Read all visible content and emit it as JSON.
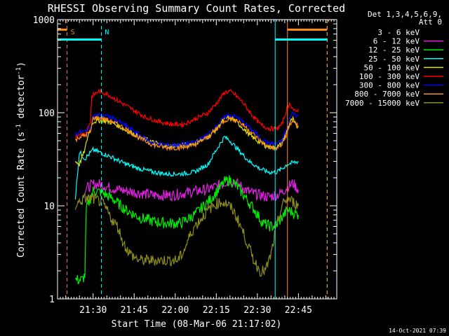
{
  "chart_data": {
    "type": "line",
    "title": "RHESSI Observing Summary Count Rates, Corrected",
    "xlabel": "Start Time (08-Mar-06 21:17:02)",
    "ylabel_main": "Corrected Count Rate (s",
    "ylabel_sup1": "-1",
    "ylabel_mid": " detector",
    "ylabel_sup2": "-1",
    "ylabel_end": ")",
    "y_scale": "log",
    "ylim": [
      1,
      1000
    ],
    "xlim_minutes": [
      0,
      102
    ],
    "x_ticks": [
      {
        "label": "21:30",
        "value": 13
      },
      {
        "label": "21:45",
        "value": 28
      },
      {
        "label": "22:00",
        "value": 43
      },
      {
        "label": "22:15",
        "value": 58
      },
      {
        "label": "22:30",
        "value": 73
      },
      {
        "label": "22:45",
        "value": 88
      }
    ],
    "y_ticks": [
      {
        "label": "1",
        "value": 1
      },
      {
        "label": "10",
        "value": 10
      },
      {
        "label": "100",
        "value": 100
      },
      {
        "label": "1000",
        "value": 1000
      }
    ],
    "grid": false,
    "legend_position": "top-right",
    "legend_header": [
      "Det 1,3,4,5,6,9,",
      "Att 0"
    ],
    "series": [
      {
        "name": "3 - 6 keV",
        "color": "#000000",
        "points": [
          [
            6.5,
            20
          ],
          [
            8,
            52
          ],
          [
            10,
            55
          ],
          [
            11,
            58
          ],
          [
            12,
            70
          ],
          [
            12.5,
            80
          ],
          [
            13,
            90
          ],
          [
            16,
            96
          ],
          [
            20,
            90
          ],
          [
            25,
            75
          ],
          [
            30,
            58
          ],
          [
            35,
            48
          ],
          [
            40,
            45
          ],
          [
            45,
            45
          ],
          [
            50,
            50
          ],
          [
            55,
            62
          ],
          [
            58,
            75
          ],
          [
            61,
            92
          ],
          [
            63,
            95
          ],
          [
            66,
            88
          ],
          [
            70,
            70
          ],
          [
            74,
            54
          ],
          [
            77,
            45
          ],
          [
            80,
            44
          ],
          [
            82,
            48
          ],
          [
            84,
            75
          ],
          [
            85,
            95
          ],
          [
            86,
            110
          ],
          [
            87,
            100
          ],
          [
            88,
            90
          ],
          [
            89,
            92
          ]
        ]
      },
      {
        "name": "6 - 12 keV",
        "color": "#e020e0",
        "points": [
          [
            10,
            15
          ],
          [
            13,
            17
          ],
          [
            16,
            17
          ],
          [
            18,
            16
          ],
          [
            22,
            15
          ],
          [
            28,
            14
          ],
          [
            35,
            13
          ],
          [
            42,
            13
          ],
          [
            48,
            14
          ],
          [
            55,
            15
          ],
          [
            60,
            17
          ],
          [
            63,
            19
          ],
          [
            66,
            17
          ],
          [
            70,
            14
          ],
          [
            74,
            13
          ],
          [
            77,
            12.5
          ],
          [
            80,
            13
          ],
          [
            82,
            14
          ],
          [
            84,
            16
          ],
          [
            86,
            17.5
          ],
          [
            87,
            16
          ],
          [
            88,
            15
          ]
        ]
      },
      {
        "name": "12 - 25 keV",
        "color": "#00ee00",
        "points": [
          [
            6.5,
            1.6
          ],
          [
            8,
            1.6
          ],
          [
            9,
            1.6
          ],
          [
            10,
            1.8
          ],
          [
            10.5,
            9
          ],
          [
            11,
            10
          ],
          [
            13,
            14.5
          ],
          [
            16,
            14
          ],
          [
            20,
            12
          ],
          [
            25,
            9
          ],
          [
            30,
            7.5
          ],
          [
            35,
            6.8
          ],
          [
            40,
            6.5
          ],
          [
            45,
            6.5
          ],
          [
            50,
            8
          ],
          [
            55,
            11
          ],
          [
            58,
            14
          ],
          [
            61,
            18
          ],
          [
            63,
            19
          ],
          [
            65,
            17
          ],
          [
            68,
            13
          ],
          [
            72,
            9
          ],
          [
            75,
            6.5
          ],
          [
            78,
            6
          ],
          [
            80,
            6.2
          ],
          [
            82,
            7.5
          ],
          [
            84,
            9
          ],
          [
            86,
            8.5
          ],
          [
            88,
            8
          ]
        ]
      },
      {
        "name": "25 - 50 keV",
        "color": "#00ffff",
        "points": [
          [
            6.5,
            12
          ],
          [
            8,
            38
          ],
          [
            10,
            32
          ],
          [
            13,
            40
          ],
          [
            16,
            37
          ],
          [
            20,
            33
          ],
          [
            25,
            28
          ],
          [
            30,
            25
          ],
          [
            35,
            23
          ],
          [
            40,
            22
          ],
          [
            45,
            22
          ],
          [
            50,
            23
          ],
          [
            55,
            28
          ],
          [
            58,
            40
          ],
          [
            61,
            55
          ],
          [
            63,
            50
          ],
          [
            66,
            40
          ],
          [
            70,
            30
          ],
          [
            74,
            25
          ],
          [
            77,
            23
          ],
          [
            80,
            23
          ],
          [
            82,
            25
          ],
          [
            84,
            28
          ],
          [
            86,
            29
          ],
          [
            88,
            30
          ]
        ]
      },
      {
        "name": "50 - 100 keV",
        "color": "#e0e000",
        "points": [
          [
            6.5,
            30
          ],
          [
            8,
            28
          ],
          [
            10,
            40
          ],
          [
            11,
            55
          ],
          [
            13,
            80
          ],
          [
            16,
            83
          ],
          [
            20,
            78
          ],
          [
            25,
            65
          ],
          [
            30,
            55
          ],
          [
            35,
            48
          ],
          [
            40,
            44
          ],
          [
            45,
            44
          ],
          [
            50,
            47
          ],
          [
            55,
            55
          ],
          [
            58,
            66
          ],
          [
            60,
            80
          ],
          [
            62,
            88
          ],
          [
            64,
            86
          ],
          [
            67,
            72
          ],
          [
            70,
            58
          ],
          [
            73,
            50
          ],
          [
            76,
            44
          ],
          [
            79,
            42
          ],
          [
            81,
            44
          ],
          [
            83,
            55
          ],
          [
            85,
            80
          ],
          [
            86,
            85
          ],
          [
            87,
            72
          ],
          [
            88,
            70
          ]
        ]
      },
      {
        "name": "100 - 300 keV",
        "color": "#ff0000",
        "points": [
          [
            6.5,
            55
          ],
          [
            8,
            60
          ],
          [
            10,
            58
          ],
          [
            12,
            80
          ],
          [
            12.5,
            150
          ],
          [
            15,
            170
          ],
          [
            18,
            160
          ],
          [
            22,
            135
          ],
          [
            27,
            110
          ],
          [
            32,
            90
          ],
          [
            37,
            80
          ],
          [
            42,
            75
          ],
          [
            46,
            75
          ],
          [
            50,
            85
          ],
          [
            55,
            100
          ],
          [
            58,
            125
          ],
          [
            61,
            165
          ],
          [
            63,
            170
          ],
          [
            65,
            155
          ],
          [
            68,
            125
          ],
          [
            71,
            95
          ],
          [
            74,
            75
          ],
          [
            77,
            68
          ],
          [
            80,
            67
          ],
          [
            82,
            75
          ],
          [
            84,
            115
          ],
          [
            85,
            125
          ],
          [
            86,
            110
          ],
          [
            87,
            100
          ],
          [
            88,
            110
          ]
        ]
      },
      {
        "name": "300 - 800 keV",
        "color": "#0000ff",
        "points": [
          [
            6.5,
            58
          ],
          [
            8,
            62
          ],
          [
            10,
            63
          ],
          [
            12,
            68
          ],
          [
            13,
            92
          ],
          [
            16,
            95
          ],
          [
            20,
            88
          ],
          [
            25,
            72
          ],
          [
            30,
            57
          ],
          [
            35,
            47
          ],
          [
            40,
            45
          ],
          [
            45,
            45
          ],
          [
            50,
            48
          ],
          [
            55,
            58
          ],
          [
            58,
            72
          ],
          [
            61,
            90
          ],
          [
            63,
            95
          ],
          [
            66,
            88
          ],
          [
            70,
            70
          ],
          [
            74,
            54
          ],
          [
            77,
            47
          ],
          [
            80,
            46
          ],
          [
            82,
            50
          ],
          [
            84,
            72
          ],
          [
            85,
            90
          ],
          [
            86,
            100
          ],
          [
            87,
            95
          ],
          [
            88,
            92
          ]
        ]
      },
      {
        "name": "800 - 7000 keV",
        "color": "#ff8c1a",
        "points": [
          [
            6.5,
            50
          ],
          [
            8,
            55
          ],
          [
            10,
            57
          ],
          [
            12,
            62
          ],
          [
            13,
            88
          ],
          [
            16,
            88
          ],
          [
            20,
            80
          ],
          [
            25,
            67
          ],
          [
            30,
            53
          ],
          [
            35,
            45
          ],
          [
            40,
            42
          ],
          [
            45,
            42
          ],
          [
            50,
            45
          ],
          [
            55,
            55
          ],
          [
            58,
            67
          ],
          [
            61,
            82
          ],
          [
            63,
            87
          ],
          [
            66,
            82
          ],
          [
            70,
            65
          ],
          [
            74,
            50
          ],
          [
            77,
            43
          ],
          [
            80,
            41
          ],
          [
            82,
            45
          ],
          [
            84,
            62
          ],
          [
            85,
            75
          ],
          [
            86,
            82
          ],
          [
            87,
            75
          ],
          [
            88,
            72
          ]
        ]
      },
      {
        "name": "7000 - 15000 keV",
        "color": "#8c8c1a",
        "points": [
          [
            6.5,
            10
          ],
          [
            8,
            11
          ],
          [
            10,
            12
          ],
          [
            11,
            12
          ],
          [
            13,
            12
          ],
          [
            16,
            11
          ],
          [
            18,
            9
          ],
          [
            20,
            7
          ],
          [
            22,
            6
          ],
          [
            24,
            4
          ],
          [
            26,
            3.2
          ],
          [
            28,
            2.8
          ],
          [
            30,
            2.6
          ],
          [
            35,
            2.6
          ],
          [
            40,
            2.6
          ],
          [
            44,
            2.6
          ],
          [
            46,
            3.2
          ],
          [
            48,
            4.5
          ],
          [
            50,
            6
          ],
          [
            52,
            7
          ],
          [
            55,
            9
          ],
          [
            58,
            10.5
          ],
          [
            60,
            11
          ],
          [
            62,
            10.5
          ],
          [
            64,
            9
          ],
          [
            66,
            7
          ],
          [
            68,
            5
          ],
          [
            70,
            3.5
          ],
          [
            72,
            2.5
          ],
          [
            74,
            2
          ],
          [
            76,
            2
          ],
          [
            78,
            3
          ],
          [
            80,
            6
          ],
          [
            82,
            10
          ],
          [
            84,
            12
          ],
          [
            86,
            11
          ],
          [
            88,
            10
          ]
        ]
      }
    ],
    "vertical_markers": [
      {
        "label": "S",
        "x": 3.5,
        "color": "#ff8c1a",
        "style": "dashed"
      },
      {
        "label": "N",
        "x": 16,
        "color": "#00ffff",
        "style": "dashed"
      },
      {
        "label": "",
        "x": 79.5,
        "color": "#00ffff",
        "style": "solid"
      },
      {
        "label": "",
        "x": 84,
        "color": "#ff8c1a",
        "style": "solid"
      },
      {
        "label": "",
        "x": 98.5,
        "color": "#00ffff",
        "style": "dashed"
      },
      {
        "label": "",
        "x": 98.5,
        "color": "#ff8c1a",
        "style": "dashed"
      }
    ],
    "flag_bars": [
      {
        "label": "",
        "start": 0,
        "end": 3.5,
        "color": "#ff8c1a",
        "level": 780
      },
      {
        "label": "",
        "start": 0,
        "end": 16,
        "color": "#00ffff",
        "level": 610
      },
      {
        "label": "",
        "start": 79.5,
        "end": 98.5,
        "color": "#00ffff",
        "level": 610
      },
      {
        "label": "",
        "start": 84,
        "end": 98.5,
        "color": "#ff8c1a",
        "level": 780
      }
    ]
  },
  "timestamp": "14-Oct-2021 07:39"
}
